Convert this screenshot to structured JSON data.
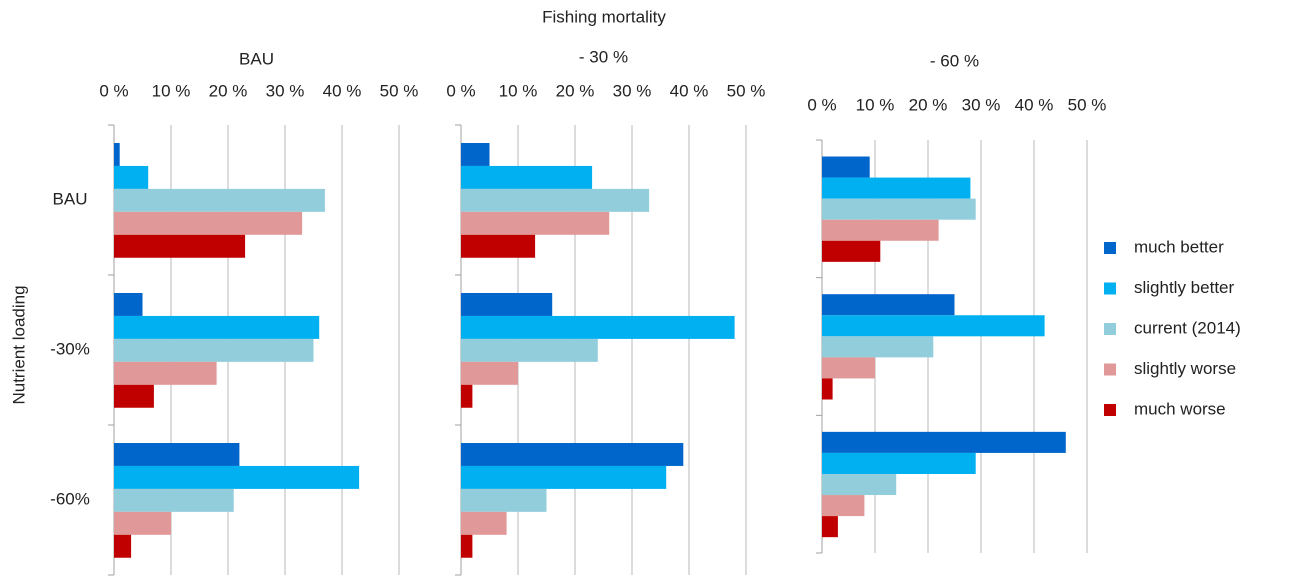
{
  "title": "Fishing mortality",
  "ylabel": "Nutrient loading",
  "legend": [
    {
      "name": "much better",
      "color": "#0066cc"
    },
    {
      "name": "slightly better",
      "color": "#00b0f0"
    },
    {
      "name": "current (2014)",
      "color": "#92cddc"
    },
    {
      "name": "slightly worse",
      "color": "#e09898"
    },
    {
      "name": "much worse",
      "color": "#c00000"
    }
  ],
  "chart_data": [
    {
      "type": "bar",
      "orientation": "horizontal",
      "title": "BAU",
      "categories": [
        "BAU",
        "-30%",
        "-60%"
      ],
      "series": [
        {
          "values": [
            1,
            5,
            22
          ]
        },
        {
          "values": [
            6,
            36,
            43
          ]
        },
        {
          "values": [
            37,
            35,
            21
          ]
        },
        {
          "values": [
            33,
            18,
            10
          ]
        },
        {
          "values": [
            23,
            7,
            3
          ]
        }
      ],
      "xlim": [
        0,
        50
      ],
      "xticks": [
        {
          "value": 0,
          "label": "0 %"
        },
        {
          "value": 10,
          "label": "10 %"
        },
        {
          "value": 20,
          "label": "20 %"
        },
        {
          "value": 30,
          "label": "30 %"
        },
        {
          "value": 40,
          "label": "40 %"
        },
        {
          "value": 50,
          "label": "50 %"
        }
      ],
      "grid": true
    },
    {
      "type": "bar",
      "orientation": "horizontal",
      "title": "- 30 %",
      "categories": [
        null,
        null,
        null
      ],
      "series": [
        {
          "values": [
            5,
            16,
            39
          ]
        },
        {
          "values": [
            23,
            48,
            36
          ]
        },
        {
          "values": [
            33,
            24,
            15
          ]
        },
        {
          "values": [
            26,
            10,
            8
          ]
        },
        {
          "values": [
            13,
            2,
            2
          ]
        }
      ],
      "xlim": [
        0,
        50
      ],
      "xticks": [
        {
          "value": 0,
          "label": "0 %"
        },
        {
          "value": 10,
          "label": "10 %"
        },
        {
          "value": 20,
          "label": "20 %"
        },
        {
          "value": 30,
          "label": "30 %"
        },
        {
          "value": 40,
          "label": "40 %"
        },
        {
          "value": 50,
          "label": "50 %"
        }
      ],
      "grid": true
    },
    {
      "type": "bar",
      "orientation": "horizontal",
      "title": "- 60 %",
      "categories": [
        null,
        null,
        null
      ],
      "series": [
        {
          "values": [
            9,
            25,
            46
          ]
        },
        {
          "values": [
            28,
            42,
            29
          ]
        },
        {
          "values": [
            29,
            21,
            14
          ]
        },
        {
          "values": [
            22,
            10,
            8
          ]
        },
        {
          "values": [
            11,
            2,
            3
          ]
        }
      ],
      "xlim": [
        0,
        50
      ],
      "xticks": [
        {
          "value": 0,
          "label": "0 %"
        },
        {
          "value": 10,
          "label": "10 %"
        },
        {
          "value": 20,
          "label": "20 %"
        },
        {
          "value": 30,
          "label": "30 %"
        },
        {
          "value": 40,
          "label": "40 %"
        },
        {
          "value": 50,
          "label": "50 %"
        }
      ],
      "grid": true
    }
  ]
}
